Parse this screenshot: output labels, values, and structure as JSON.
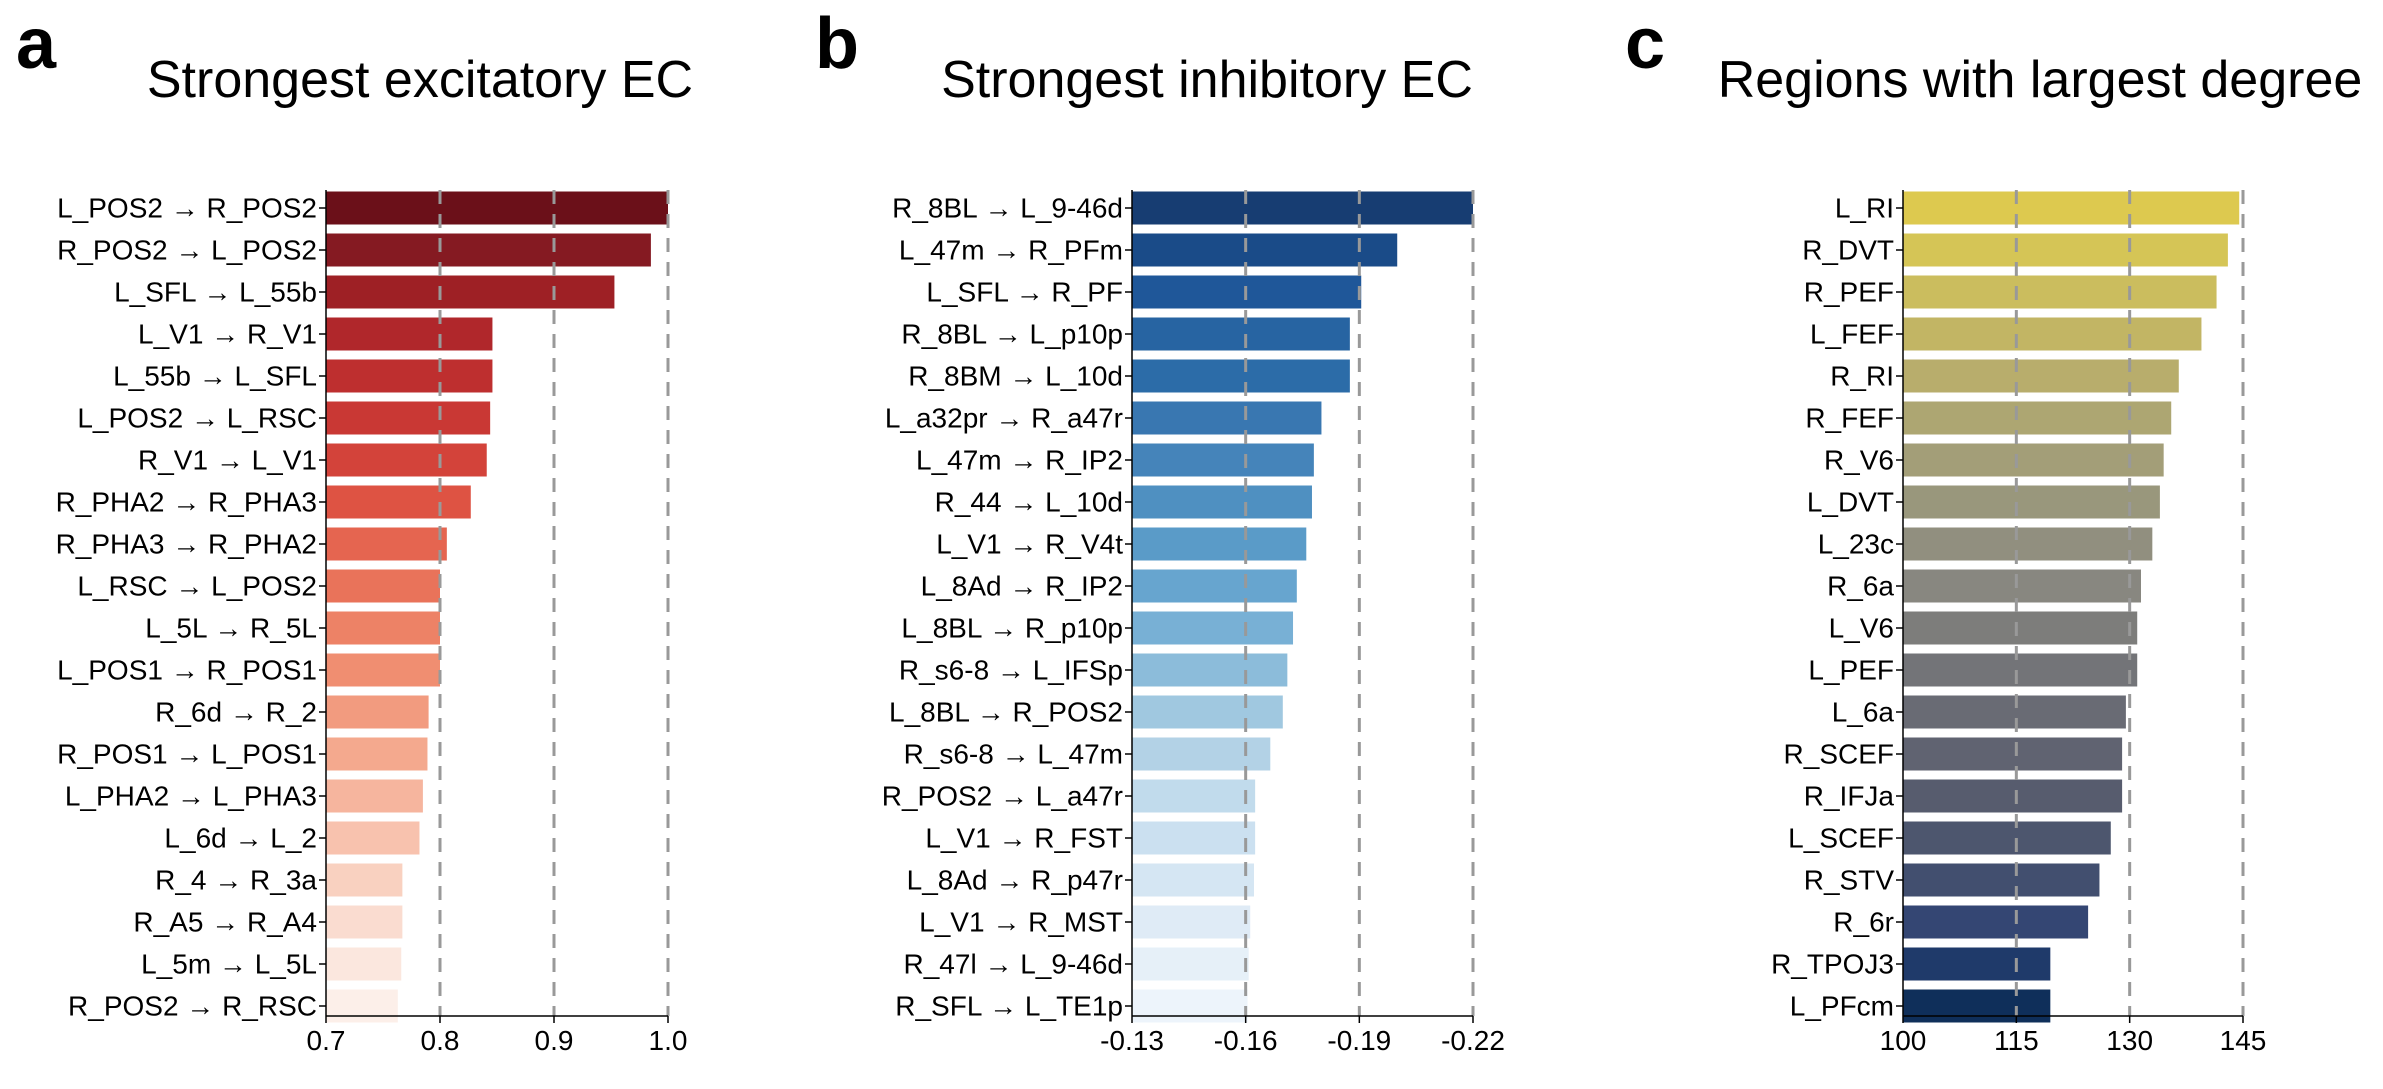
{
  "chart_data": [
    {
      "type": "bar",
      "orientation": "horizontal",
      "panel_label": "a",
      "title": "Strongest excitatory EC",
      "xlabel": "",
      "ylabel": "",
      "xlim": [
        0.7,
        1.0
      ],
      "xticks": [
        0.7,
        0.8,
        0.9,
        1.0
      ],
      "xtick_labels": [
        "0.7",
        "0.8",
        "0.9",
        "1.0"
      ],
      "gridlines_at": [
        0.8,
        0.9,
        1.0
      ],
      "categories": [
        "L_POS2 → R_POS2",
        "R_POS2 → L_POS2",
        "L_SFL → L_55b",
        "L_V1 → R_V1",
        "L_55b → L_SFL",
        "L_POS2 → L_RSC",
        "R_V1 → L_V1",
        "R_PHA2 → R_PHA3",
        "R_PHA3 → R_PHA2",
        "L_RSC → L_POS2",
        "L_5L → R_5L",
        "L_POS1 → R_POS1",
        "R_6d → R_2",
        "R_POS1 → L_POS1",
        "L_PHA2 → L_PHA3",
        "L_6d → L_2",
        "R_4 → R_3a",
        "R_A5 → R_A4",
        "L_5m → L_5L",
        "R_POS2 → R_RSC"
      ],
      "values": [
        1.0,
        0.985,
        0.953,
        0.846,
        0.846,
        0.844,
        0.841,
        0.827,
        0.806,
        0.8,
        0.8,
        0.8,
        0.79,
        0.789,
        0.785,
        0.782,
        0.767,
        0.767,
        0.766,
        0.763
      ],
      "colors": [
        "#6b1019",
        "#851a22",
        "#9e2025",
        "#b0272b",
        "#be2f2f",
        "#c93834",
        "#d3433a",
        "#de5343",
        "#e56550",
        "#e9735a",
        "#ed8266",
        "#f08e71",
        "#f29b7f",
        "#f4a98e",
        "#f6b59e",
        "#f8c2ae",
        "#f9d1c0",
        "#fadcd0",
        "#fbe7de",
        "#fcefe9"
      ]
    },
    {
      "type": "bar",
      "orientation": "horizontal",
      "panel_label": "b",
      "title": "Strongest inhibitory EC",
      "xlabel": "",
      "ylabel": "",
      "xlim": [
        -0.13,
        -0.22
      ],
      "xticks": [
        -0.13,
        -0.16,
        -0.19,
        -0.22
      ],
      "xtick_labels": [
        "-0.13",
        "-0.16",
        "-0.19",
        "-0.22"
      ],
      "gridlines_at": [
        -0.16,
        -0.19,
        -0.22
      ],
      "categories": [
        "R_8BL → L_9-46d",
        "L_47m → R_PFm",
        "L_SFL → R_PF",
        "R_8BL → L_p10p",
        "R_8BM → L_10d",
        "L_a32pr → R_a47r",
        "L_47m → R_IP2",
        "R_44 → L_10d",
        "L_V1 → R_V4t",
        "L_8Ad → R_IP2",
        "L_8BL → R_p10p",
        "R_s6-8 → L_IFSp",
        "L_8BL → R_POS2",
        "R_s6-8 → L_47m",
        "R_POS2 → L_a47r",
        "L_V1 → R_FST",
        "L_8Ad → R_p47r",
        "L_V1 → R_MST",
        "R_47l → L_9-46d",
        "R_SFL → L_TE1p"
      ],
      "values": [
        -0.22,
        -0.2,
        -0.1905,
        -0.1875,
        -0.1875,
        -0.18,
        -0.178,
        -0.1775,
        -0.176,
        -0.1735,
        -0.1725,
        -0.171,
        -0.1698,
        -0.1665,
        -0.1625,
        -0.1625,
        -0.1622,
        -0.1612,
        -0.1608,
        -0.1605
      ],
      "colors": [
        "#173d72",
        "#1a4b88",
        "#1f5799",
        "#2764a2",
        "#2c6ca8",
        "#3977b1",
        "#4584ba",
        "#4f90c1",
        "#5a9bc8",
        "#67a5cf",
        "#78b0d5",
        "#8cbcda",
        "#a0c8e0",
        "#b3d2e6",
        "#c1dbec",
        "#cbe0f0",
        "#d5e6f3",
        "#dfebf6",
        "#e6f0f8",
        "#edf4fb"
      ]
    },
    {
      "type": "bar",
      "orientation": "horizontal",
      "panel_label": "c",
      "title": "Regions with largest degree",
      "xlabel": "",
      "ylabel": "",
      "xlim": [
        100,
        145
      ],
      "xticks": [
        100,
        115,
        130,
        145
      ],
      "xtick_labels": [
        "100",
        "115",
        "130",
        "145"
      ],
      "gridlines_at": [
        115,
        130,
        145
      ],
      "categories": [
        "L_RI",
        "R_DVT",
        "R_PEF",
        "L_FEF",
        "R_RI",
        "R_FEF",
        "R_V6",
        "L_DVT",
        "L_23c",
        "R_6a",
        "L_V6",
        "L_PEF",
        "L_6a",
        "R_SCEF",
        "R_IFJa",
        "L_SCEF",
        "R_STV",
        "R_6r",
        "R_TPOJ3",
        "L_PFcm"
      ],
      "values": [
        144.5,
        143,
        141.5,
        139.5,
        136.5,
        135.5,
        134.5,
        134,
        133,
        131.5,
        131,
        131,
        129.5,
        129,
        129,
        127.5,
        126,
        124.5,
        119.5,
        119.5
      ],
      "colors": [
        "#ddc94f",
        "#d5c556",
        "#cbbd5e",
        "#c2b564",
        "#b8ad6c",
        "#ada672",
        "#a39e78",
        "#99977c",
        "#918f7f",
        "#888780",
        "#7d7d7b",
        "#737478",
        "#696b74",
        "#606371",
        "#575c6e",
        "#4d566e",
        "#424f6f",
        "#344673",
        "#1f3a6a",
        "#0f2f5a"
      ]
    }
  ]
}
